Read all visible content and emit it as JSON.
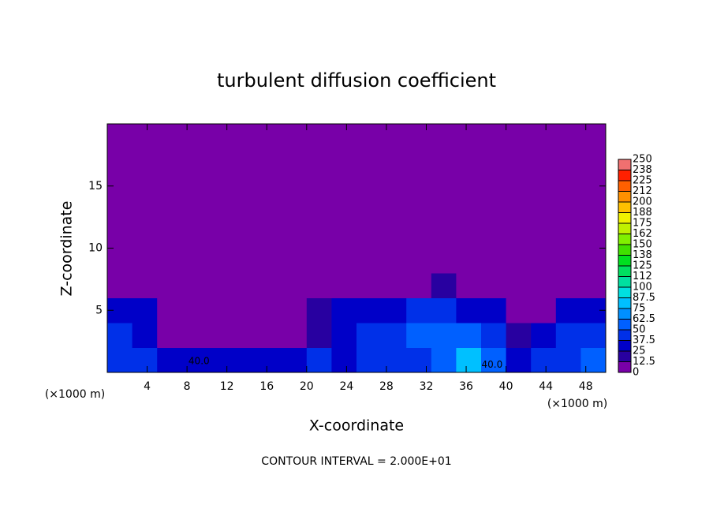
{
  "chart_data": {
    "type": "heatmap",
    "title": "turbulent diffusion coefficient",
    "xlabel": "X-coordinate",
    "ylabel": "Z-coordinate",
    "x_unit_left": "(×1000 m)",
    "x_unit_right": "(×1000 m)",
    "footer": "CONTOUR INTERVAL = 2.000E+01",
    "annotations": [
      {
        "text": "40.0",
        "x": 9.2,
        "y": 0.9
      },
      {
        "text": "40.0",
        "x": 38.6,
        "y": 0.6
      }
    ],
    "xlim": [
      0,
      50
    ],
    "ylim": [
      0,
      20
    ],
    "xticks": [
      4,
      8,
      12,
      16,
      20,
      24,
      28,
      32,
      36,
      40,
      44,
      48
    ],
    "yticks": [
      5,
      10,
      15
    ],
    "z": [
      [
        45,
        40,
        35,
        30,
        30,
        35,
        35,
        35,
        40,
        35,
        40,
        40,
        45,
        60,
        85,
        50,
        35,
        40,
        45,
        50
      ],
      [
        40,
        35,
        10,
        10,
        5,
        5,
        5,
        10,
        20,
        35,
        40,
        45,
        50,
        60,
        55,
        40,
        20,
        30,
        45,
        40
      ],
      [
        35,
        30,
        5,
        0,
        0,
        0,
        0,
        5,
        15,
        30,
        35,
        30,
        40,
        45,
        35,
        25,
        5,
        10,
        30,
        35
      ],
      [
        10,
        0,
        0,
        0,
        0,
        0,
        0,
        0,
        0,
        5,
        10,
        10,
        10,
        15,
        5,
        0,
        0,
        0,
        0,
        5
      ],
      [
        0,
        0,
        0,
        0,
        0,
        0,
        0,
        0,
        0,
        0,
        0,
        0,
        0,
        0,
        0,
        0,
        0,
        0,
        0,
        0
      ],
      [
        0,
        0,
        0,
        0,
        0,
        0,
        0,
        0,
        0,
        0,
        0,
        0,
        0,
        0,
        0,
        0,
        0,
        0,
        0,
        0
      ],
      [
        0,
        0,
        0,
        0,
        0,
        0,
        0,
        0,
        0,
        0,
        0,
        0,
        0,
        0,
        0,
        0,
        0,
        0,
        0,
        0
      ],
      [
        0,
        0,
        0,
        0,
        0,
        0,
        0,
        0,
        0,
        0,
        0,
        0,
        0,
        0,
        0,
        0,
        0,
        0,
        0,
        0
      ],
      [
        0,
        0,
        0,
        0,
        0,
        0,
        0,
        0,
        0,
        0,
        0,
        0,
        0,
        0,
        0,
        0,
        0,
        0,
        0,
        0
      ],
      [
        0,
        0,
        0,
        0,
        0,
        0,
        0,
        0,
        0,
        0,
        0,
        0,
        0,
        0,
        0,
        0,
        0,
        0,
        0,
        0
      ]
    ],
    "colorbar_ticks": [
      0,
      12.5,
      25,
      37.5,
      50,
      62.5,
      75,
      87.5,
      100,
      {
        "value": 112.5,
        "label": "112"
      },
      125,
      {
        "value": 137.5,
        "label": "138"
      },
      150,
      {
        "value": 162.5,
        "label": "162"
      },
      175,
      {
        "value": 187.5,
        "label": "188"
      },
      200,
      {
        "value": 212.5,
        "label": "212"
      },
      225,
      {
        "value": 237.5,
        "label": "238"
      },
      250
    ],
    "colors": [
      "#7800a8",
      "#2800a0",
      "#0000c8",
      "#0030e8",
      "#0060ff",
      "#0090ff",
      "#00c0ff",
      "#00e0e0",
      "#00e0a0",
      "#00e060",
      "#00e020",
      "#40e000",
      "#80f000",
      "#c0f000",
      "#f0f000",
      "#ffc000",
      "#ff9000",
      "#ff6000",
      "#ff2000",
      "#f07070"
    ]
  }
}
